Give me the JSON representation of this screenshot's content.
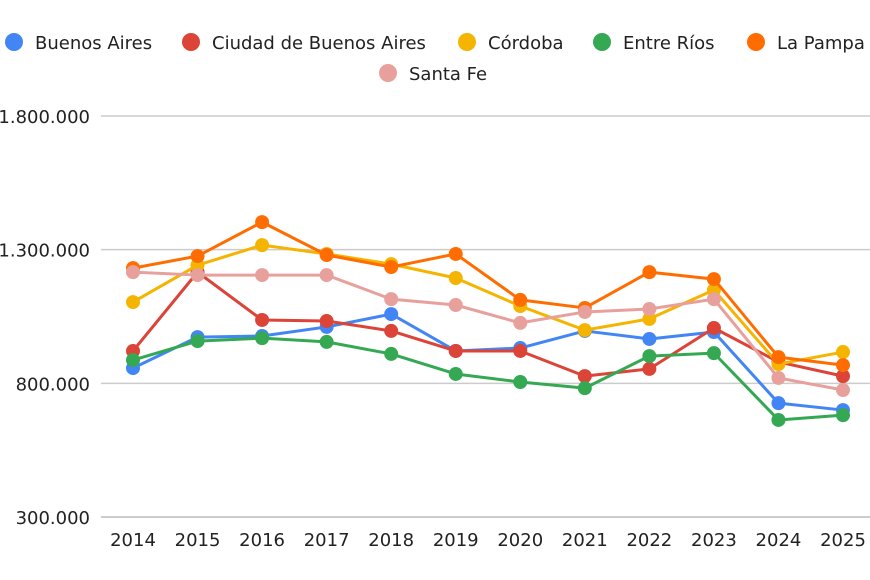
{
  "chart_data": {
    "type": "line",
    "title": "",
    "xlabel": "",
    "ylabel": "",
    "categories": [
      "2014",
      "2015",
      "2016",
      "2017",
      "2018",
      "2019",
      "2020",
      "2021",
      "2022",
      "2023",
      "2024",
      "2025"
    ],
    "ylim": [
      300000,
      1800000
    ],
    "yticks": [
      300000,
      800000,
      1300000,
      1800000
    ],
    "ytick_labels": [
      "300.000",
      "800.000",
      "1.300.000",
      "1.800.000"
    ],
    "grid": true,
    "legend_position": "top",
    "series": [
      {
        "name": "Buenos Aires",
        "color": "#4285F4",
        "values": [
          857000,
          973000,
          977000,
          1011000,
          1059000,
          921000,
          932000,
          996000,
          966000,
          992000,
          726000,
          700000
        ]
      },
      {
        "name": "Ciudad de Buenos Aires",
        "color": "#DB4437",
        "values": [
          921000,
          1216000,
          1037000,
          1033000,
          996000,
          921000,
          921000,
          827000,
          854000,
          1007000,
          880000,
          827000
        ]
      },
      {
        "name": "Córdoba",
        "color": "#F4B400",
        "values": [
          1104000,
          1242000,
          1317000,
          1284000,
          1246000,
          1194000,
          1089000,
          999000,
          1041000,
          1149000,
          872000,
          917000
        ]
      },
      {
        "name": "Entre Ríos",
        "color": "#34A853",
        "values": [
          887000,
          958000,
          969000,
          955000,
          910000,
          835000,
          805000,
          782000,
          902000,
          913000,
          663000,
          681000
        ]
      },
      {
        "name": "La Pampa",
        "color": "#FF6D01",
        "values": [
          1231000,
          1276000,
          1403000,
          1280000,
          1235000,
          1284000,
          1112000,
          1082000,
          1216000,
          1190000,
          898000,
          868000
        ]
      },
      {
        "name": "Santa Fe",
        "color": "#E8A09C",
        "values": [
          1216000,
          1205000,
          1205000,
          1205000,
          1115000,
          1093000,
          1026000,
          1067000,
          1078000,
          1115000,
          820000,
          775000
        ]
      }
    ]
  }
}
